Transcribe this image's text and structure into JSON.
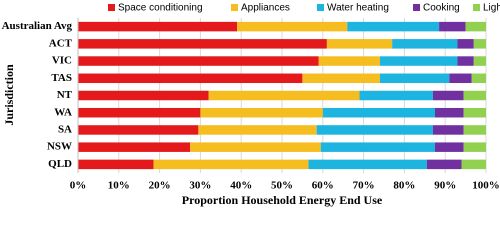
{
  "chart_data": {
    "type": "stacked-barh",
    "x_label": "Proportion Household Energy End Use",
    "y_label": "Jurisdiction",
    "categories": [
      "Australian Avg",
      "ACT",
      "VIC",
      "TAS",
      "NT",
      "WA",
      "SA",
      "NSW",
      "QLD"
    ],
    "series": [
      {
        "name": "Space conditioning",
        "color": "#e3191c",
        "values": [
          39,
          61,
          59,
          55,
          32,
          30,
          29.5,
          27.5,
          18.5
        ]
      },
      {
        "name": "Appliances",
        "color": "#f5bd1f",
        "values": [
          27,
          16,
          15,
          19,
          37,
          30,
          29,
          32,
          38
        ]
      },
      {
        "name": "Water heating",
        "color": "#1db4e0",
        "values": [
          22.5,
          16,
          19,
          17,
          18,
          27.5,
          28.5,
          28,
          29
        ]
      },
      {
        "name": "Cooking",
        "color": "#7030a0",
        "values": [
          6.5,
          4,
          4,
          5.5,
          7.5,
          7,
          7.5,
          7,
          8.5
        ]
      },
      {
        "name": "Lighting",
        "color": "#92d050",
        "values": [
          5,
          3,
          3,
          3.5,
          5.5,
          5.5,
          5.5,
          5.5,
          6
        ]
      }
    ],
    "xlim": [
      0,
      100
    ],
    "xticks": [
      {
        "value": 0,
        "label": "0%"
      },
      {
        "value": 10,
        "label": "10%"
      },
      {
        "value": 20,
        "label": "20%"
      },
      {
        "value": 30,
        "label": "30%"
      },
      {
        "value": 40,
        "label": "40%"
      },
      {
        "value": 50,
        "label": "50%"
      },
      {
        "value": 60,
        "label": "60%"
      },
      {
        "value": 70,
        "label": "70%"
      },
      {
        "value": 80,
        "label": "80%"
      },
      {
        "value": 90,
        "label": "90%"
      },
      {
        "value": 100,
        "label": "100%"
      }
    ],
    "grid": true
  }
}
